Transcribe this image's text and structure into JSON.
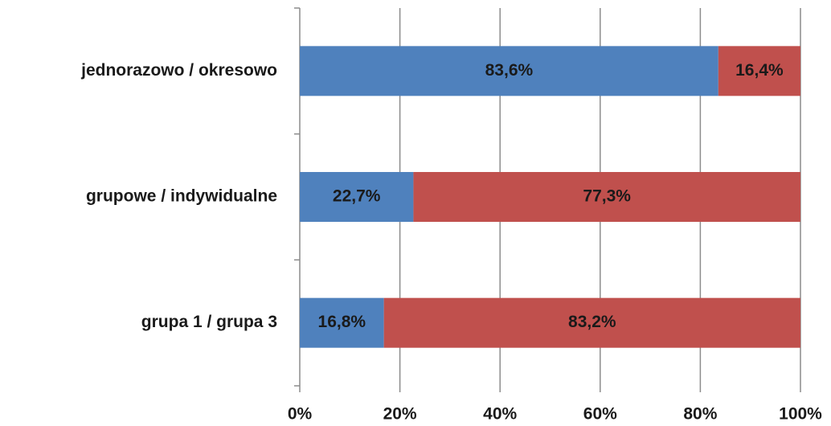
{
  "chart_data": {
    "type": "stacked-bar-horizontal",
    "categories": [
      "jednorazowo / okresowo",
      "grupowe / indywidualne",
      "grupa 1 / grupa 3"
    ],
    "series": [
      {
        "color": "#4f81bd",
        "values": [
          83.6,
          22.7,
          16.8
        ],
        "value_labels": [
          "83,6%",
          "22,7%",
          "16,8%"
        ]
      },
      {
        "color": "#c0504d",
        "values": [
          16.4,
          77.3,
          83.2
        ],
        "value_labels": [
          "16,4%",
          "77,3%",
          "83,2%"
        ]
      }
    ],
    "xlim": [
      0,
      100
    ],
    "xticks": [
      {
        "value": 0,
        "label": "0%"
      },
      {
        "value": 20,
        "label": "20%"
      },
      {
        "value": 40,
        "label": "40%"
      },
      {
        "value": 60,
        "label": "60%"
      },
      {
        "value": 80,
        "label": "80%"
      },
      {
        "value": 100,
        "label": "100%"
      }
    ],
    "grid": true
  }
}
